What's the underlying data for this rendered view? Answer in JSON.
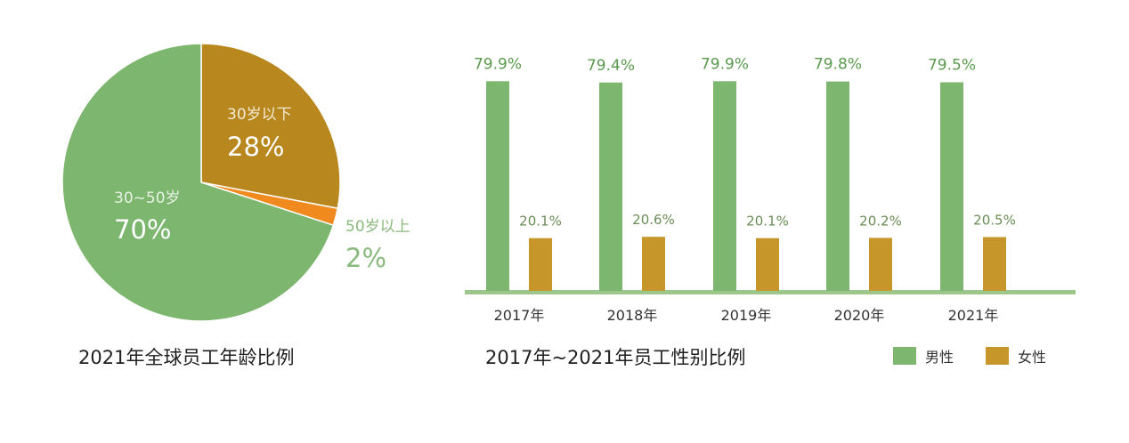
{
  "colors": {
    "male": "#7db66f",
    "female": "#c6962a",
    "pie_young": "#b8871e",
    "pie_mid": "#7db66f",
    "pie_old": "#f08a1e",
    "baseline": "#9bc78b",
    "value_label_male": "#5a9a4d",
    "value_label_female": "#6a8d56",
    "axis_text": "#333333"
  },
  "pie_title": "2021年全球员工年龄比例",
  "bar_title": "2017年~2021年员工性别比例",
  "legend": {
    "male": "男性",
    "female": "女性"
  },
  "chart_data": [
    {
      "type": "pie",
      "title": "2021年全球员工年龄比例",
      "slices": [
        {
          "label": "30岁以下",
          "value": 28,
          "value_label": "28%"
        },
        {
          "label": "50岁以上",
          "value": 2,
          "value_label": "2%"
        },
        {
          "label": "30~50岁",
          "value": 70,
          "value_label": "70%"
        }
      ]
    },
    {
      "type": "bar",
      "title": "2017年~2021年员工性别比例",
      "categories": [
        "2017年",
        "2018年",
        "2019年",
        "2020年",
        "2021年"
      ],
      "series": [
        {
          "name": "男性",
          "values": [
            79.9,
            79.4,
            79.9,
            79.8,
            79.5
          ],
          "labels": [
            "79.9%",
            "79.4%",
            "79.9%",
            "79.8%",
            "79.5%"
          ]
        },
        {
          "name": "女性",
          "values": [
            20.1,
            20.6,
            20.1,
            20.2,
            20.5
          ],
          "labels": [
            "20.1%",
            "20.6%",
            "20.1%",
            "20.2%",
            "20.5%"
          ]
        }
      ],
      "ylim": [
        0,
        100
      ],
      "legend_position": "bottom-right",
      "grid": false
    }
  ]
}
